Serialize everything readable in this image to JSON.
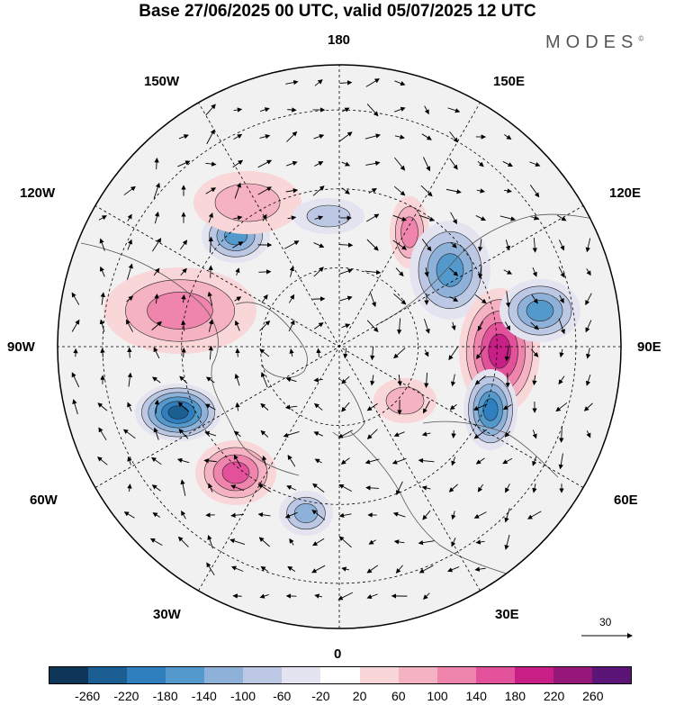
{
  "title": "Base 27/06/2025 00 UTC, valid 05/07/2025 12 UTC",
  "brand": "MODES",
  "brand_mark": "©",
  "longitude_labels": {
    "top": "180",
    "bottom": "0",
    "left": "90W",
    "right": "90E",
    "nw_upper": "150W",
    "ne_upper": "150E",
    "nw_lower": "120W",
    "ne_lower": "120E",
    "sw_upper": "60W",
    "se_upper": "60E",
    "sw_lower": "30W",
    "se_lower": "30E"
  },
  "vector_reference": "30",
  "colorbar": {
    "colors": [
      "#0d3557",
      "#1a5e92",
      "#2f7fbf",
      "#5499cc",
      "#8db1d8",
      "#bcc8e3",
      "#e4e4f1",
      "#ffffff",
      "#f9d6d8",
      "#f4b2c2",
      "#ef84ac",
      "#e2519a",
      "#c81f86",
      "#95177a",
      "#5a1576"
    ],
    "ticks": [
      "-260",
      "-220",
      "-180",
      "-140",
      "-100",
      "-60",
      "-20",
      "20",
      "60",
      "100",
      "140",
      "180",
      "220",
      "260"
    ]
  },
  "anomalies": [
    {
      "kind": "neg",
      "level": 4
    },
    {
      "kind": "pos",
      "level": 3
    },
    {
      "kind": "neg",
      "level": 6
    },
    {
      "kind": "pos",
      "level": 4
    },
    {
      "kind": "neg",
      "level": 3
    },
    {
      "kind": "pos",
      "level": 3
    },
    {
      "kind": "neg",
      "level": 4
    },
    {
      "kind": "pos",
      "level": 5
    },
    {
      "kind": "neg",
      "level": 5
    },
    {
      "kind": "neg",
      "level": 4
    },
    {
      "kind": "pos",
      "level": 2
    },
    {
      "kind": "pos",
      "level": 2
    },
    {
      "kind": "neg",
      "level": 2
    }
  ]
}
